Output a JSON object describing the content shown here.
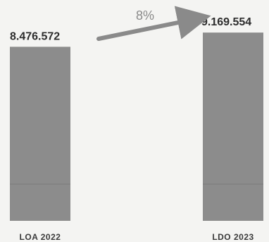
{
  "chart_data": {
    "type": "bar",
    "categories": [
      "LOA 2022",
      "LDO 2023"
    ],
    "values": [
      8476572,
      9169554
    ],
    "value_labels": [
      "8.476.572",
      "9.169.554"
    ],
    "annotation": "8%",
    "bar_color": "#8c8c8c",
    "arrow_color": "#8a8a8a",
    "grid": false,
    "legend": "none"
  }
}
